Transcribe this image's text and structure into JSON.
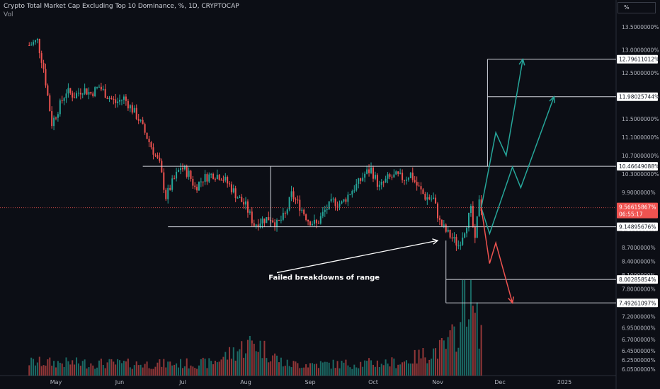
{
  "header": {
    "title": "Crypto Total Market Cap Excluding Top 10 Dominance, %, 1D, CRYPTOCAP",
    "volume_label": "Vol",
    "scale_button": "%"
  },
  "chart_data": {
    "type": "candlestick",
    "title": "Crypto Total Market Cap Excluding Top 10 Dominance, %, 1D, CRYPTOCAP",
    "ylabel": "%",
    "ylim": [
      5.95,
      13.72
    ],
    "y_ticks": [
      "13.5000000%",
      "13.0000000%",
      "12.5000000%",
      "12.0000000%",
      "11.5000000%",
      "11.1000000%",
      "10.7000000%",
      "10.3000000%",
      "9.9000000%",
      "9.5000000%",
      "9.1000000%",
      "8.7000000%",
      "8.4000000%",
      "8.1000000%",
      "7.8000000%",
      "7.5000000%",
      "7.2000000%",
      "6.9500000%",
      "6.7000000%",
      "6.4500000%",
      "6.2500000%",
      "6.0500000%"
    ],
    "x_ticks": [
      "May",
      "Jun",
      "Jul",
      "Aug",
      "Sep",
      "Oct",
      "Nov",
      "Dec",
      "2025"
    ],
    "close_anchors": [
      [
        "2024-04-18",
        13.1
      ],
      [
        "2024-04-22",
        13.2
      ],
      [
        "2024-04-25",
        12.6
      ],
      [
        "2024-04-29",
        11.4
      ],
      [
        "2024-05-02",
        11.7
      ],
      [
        "2024-05-06",
        12.1
      ],
      [
        "2024-05-10",
        12.0
      ],
      [
        "2024-05-14",
        12.15
      ],
      [
        "2024-05-18",
        12.05
      ],
      [
        "2024-05-22",
        12.2
      ],
      [
        "2024-05-26",
        12.0
      ],
      [
        "2024-05-30",
        11.85
      ],
      [
        "2024-06-03",
        11.95
      ],
      [
        "2024-06-07",
        11.7
      ],
      [
        "2024-06-10",
        11.5
      ],
      [
        "2024-06-13",
        11.2
      ],
      [
        "2024-06-17",
        10.8
      ],
      [
        "2024-06-20",
        10.5
      ],
      [
        "2024-06-23",
        9.8
      ],
      [
        "2024-06-26",
        10.1
      ],
      [
        "2024-06-30",
        10.45
      ],
      [
        "2024-07-04",
        10.3
      ],
      [
        "2024-07-07",
        10.0
      ],
      [
        "2024-07-11",
        10.2
      ],
      [
        "2024-07-16",
        10.3
      ],
      [
        "2024-07-20",
        10.25
      ],
      [
        "2024-07-24",
        10.05
      ],
      [
        "2024-07-28",
        9.8
      ],
      [
        "2024-08-01",
        9.6
      ],
      [
        "2024-08-05",
        9.2
      ],
      [
        "2024-08-09",
        9.3
      ],
      [
        "2024-08-13",
        9.35
      ],
      [
        "2024-08-16",
        9.2
      ],
      [
        "2024-08-20",
        9.4
      ],
      [
        "2024-08-23",
        9.85
      ],
      [
        "2024-08-27",
        9.6
      ],
      [
        "2024-08-31",
        9.3
      ],
      [
        "2024-09-04",
        9.2
      ],
      [
        "2024-09-08",
        9.5
      ],
      [
        "2024-09-12",
        9.7
      ],
      [
        "2024-09-16",
        9.65
      ],
      [
        "2024-09-20",
        9.9
      ],
      [
        "2024-09-24",
        10.1
      ],
      [
        "2024-09-27",
        10.3
      ],
      [
        "2024-09-30",
        10.4
      ],
      [
        "2024-10-04",
        10.0
      ],
      [
        "2024-10-08",
        10.2
      ],
      [
        "2024-10-12",
        10.25
      ],
      [
        "2024-10-16",
        10.2
      ],
      [
        "2024-10-19",
        10.3
      ],
      [
        "2024-10-22",
        10.05
      ],
      [
        "2024-10-26",
        9.8
      ],
      [
        "2024-10-30",
        9.75
      ],
      [
        "2024-11-02",
        9.25
      ],
      [
        "2024-11-05",
        9.05
      ],
      [
        "2024-11-08",
        8.9
      ],
      [
        "2024-11-11",
        8.75
      ],
      [
        "2024-11-14",
        9.1
      ],
      [
        "2024-11-17",
        9.5
      ],
      [
        "2024-11-19",
        8.8
      ],
      [
        "2024-11-21",
        9.8
      ],
      [
        "2024-11-22",
        9.56615867
      ]
    ],
    "volume": {
      "ylim": [
        0,
        100
      ],
      "anchors": [
        [
          "2024-04-18",
          14
        ],
        [
          "2024-05-15",
          13
        ],
        [
          "2024-06-15",
          12
        ],
        [
          "2024-07-15",
          13
        ],
        [
          "2024-08-05",
          35
        ],
        [
          "2024-08-20",
          12
        ],
        [
          "2024-09-15",
          12
        ],
        [
          "2024-10-15",
          14
        ],
        [
          "2024-11-05",
          30
        ],
        [
          "2024-11-12",
          50
        ],
        [
          "2024-11-14",
          100
        ],
        [
          "2024-11-16",
          80
        ],
        [
          "2024-11-20",
          55
        ],
        [
          "2024-11-22",
          45
        ]
      ]
    },
    "levels": [
      {
        "label": "12.79611012%",
        "value": 12.79611012
      },
      {
        "label": "11.98025744%",
        "value": 11.98025744
      },
      {
        "label": "10.46649088%",
        "value": 10.46649088
      },
      {
        "label": "9.14895676%",
        "value": 9.14895676
      },
      {
        "label": "8.00285854%",
        "value": 8.00285854
      },
      {
        "label": "7.49261097%",
        "value": 7.49261097
      }
    ],
    "current": {
      "label": "9.56615867%",
      "value": 9.56615867,
      "countdown": "06:55:17"
    },
    "annotation": "Failed breakdowns of range",
    "projections": {
      "bull_1": [
        [
          "2024-11-22",
          9.56615867
        ],
        [
          "2024-11-29",
          11.2
        ],
        [
          "2024-12-04",
          10.7
        ],
        [
          "2024-12-12",
          12.79611012
        ]
      ],
      "bull_2": [
        [
          "2024-11-22",
          9.56615867
        ],
        [
          "2024-11-26",
          9.0
        ],
        [
          "2024-12-07",
          10.45
        ],
        [
          "2024-12-11",
          10.0
        ],
        [
          "2024-12-27",
          11.98025744
        ]
      ],
      "bear": [
        [
          "2024-11-22",
          9.56615867
        ],
        [
          "2024-11-26",
          8.35
        ],
        [
          "2024-11-29",
          8.8
        ],
        [
          "2024-12-07",
          7.49261097
        ]
      ]
    },
    "colors": {
      "up": "#26a69a",
      "down": "#ef5350",
      "bull_line": "#26a69a",
      "bear_line": "#ef5350",
      "level_line": "#d1d4dc",
      "annotation": "#ffffff"
    }
  }
}
